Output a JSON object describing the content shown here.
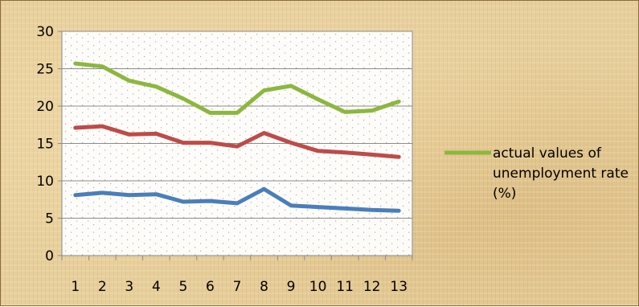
{
  "chart_data": {
    "type": "line",
    "x": [
      1,
      2,
      3,
      4,
      5,
      6,
      7,
      8,
      9,
      10,
      11,
      12,
      13
    ],
    "ylim": [
      0,
      30
    ],
    "y_ticks": [
      0,
      5,
      10,
      15,
      20,
      25,
      30
    ],
    "grid": true,
    "legend_position": "right",
    "series": [
      {
        "color": "#4a7ebb",
        "values": [
          8.1,
          8.4,
          8.1,
          8.2,
          7.2,
          7.3,
          7.0,
          8.9,
          6.7,
          6.5,
          6.3,
          6.1,
          6.0
        ]
      },
      {
        "color": "#be4b48",
        "values": [
          17.1,
          17.3,
          16.2,
          16.3,
          15.1,
          15.1,
          14.6,
          16.4,
          15.1,
          14.0,
          13.8,
          13.5,
          13.2
        ]
      },
      {
        "name": "actual values of unemployment rate (%)",
        "color": "#8cb73e",
        "values": [
          25.7,
          25.3,
          23.4,
          22.6,
          21.0,
          19.1,
          19.1,
          22.1,
          22.7,
          20.9,
          19.2,
          19.4,
          20.6
        ]
      }
    ]
  }
}
